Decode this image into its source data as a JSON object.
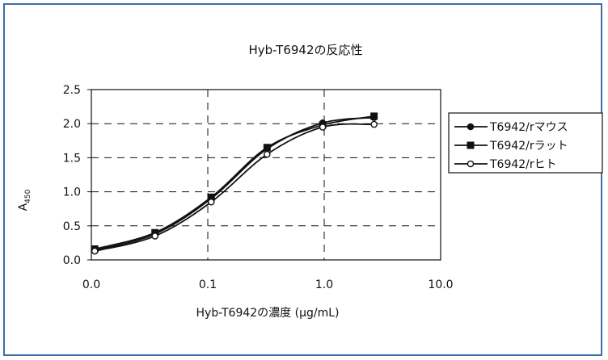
{
  "colors": {
    "border": "#3d6ea8",
    "ink": "#111111"
  },
  "chart_data": {
    "type": "line",
    "title": "Hyb-T6942の反応性",
    "xlabel": "Hyb-T6942の濃度 (μg/mL)",
    "ylabel_main": "A",
    "ylabel_sub": "450",
    "x_scale": "log",
    "xlim": [
      0.01,
      10.0
    ],
    "ylim": [
      0.0,
      2.5
    ],
    "x_ticks": [
      {
        "value": 0.01,
        "label": "0.0"
      },
      {
        "value": 0.1,
        "label": "0.1"
      },
      {
        "value": 1.0,
        "label": "1.0"
      },
      {
        "value": 10.0,
        "label": "10.0"
      }
    ],
    "y_ticks": [
      {
        "value": 0.0,
        "label": "0.0"
      },
      {
        "value": 0.5,
        "label": "0.5"
      },
      {
        "value": 1.0,
        "label": "1.0"
      },
      {
        "value": 1.5,
        "label": "1.5"
      },
      {
        "value": 2.0,
        "label": "2.0"
      },
      {
        "value": 2.5,
        "label": "2.5"
      }
    ],
    "grid": "dashed",
    "legend_position": "right",
    "x": [
      0.0107,
      0.0352,
      0.107,
      0.323,
      0.97,
      2.68
    ],
    "series": [
      {
        "name": "T6942/rマウス",
        "marker": "circle-filled",
        "values": [
          0.14,
          0.38,
          0.9,
          1.63,
          2.01,
          2.09
        ]
      },
      {
        "name": "T6942/rラット",
        "marker": "square-filled",
        "values": [
          0.16,
          0.4,
          0.92,
          1.65,
          1.98,
          2.11
        ]
      },
      {
        "name": "T6942/rヒト",
        "marker": "circle-open",
        "values": [
          0.13,
          0.35,
          0.85,
          1.55,
          1.95,
          1.99
        ]
      }
    ]
  }
}
